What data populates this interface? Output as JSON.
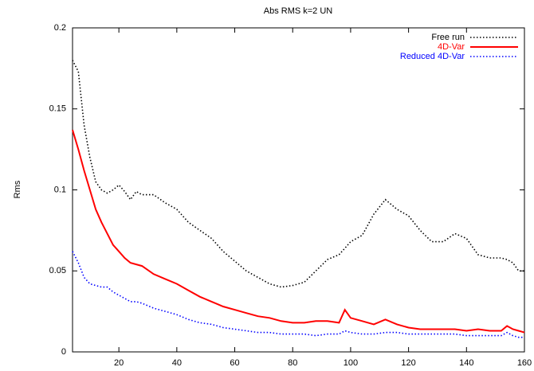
{
  "chart_data": {
    "type": "line",
    "title": "Abs RMS k=2 UN",
    "y_label": "Rms",
    "x": [
      4,
      6,
      8,
      10,
      12,
      14,
      16,
      18,
      20,
      22,
      24,
      26,
      28,
      32,
      36,
      40,
      44,
      48,
      52,
      56,
      60,
      64,
      68,
      72,
      76,
      80,
      84,
      88,
      92,
      96,
      98,
      100,
      104,
      108,
      112,
      116,
      120,
      124,
      128,
      132,
      136,
      140,
      144,
      148,
      152,
      154,
      156,
      158,
      160
    ],
    "series": [
      {
        "name": "Free run",
        "color": "#000000",
        "style": "dotted",
        "values": [
          0.18,
          0.173,
          0.14,
          0.12,
          0.105,
          0.1,
          0.098,
          0.1,
          0.103,
          0.099,
          0.094,
          0.099,
          0.097,
          0.097,
          0.092,
          0.088,
          0.08,
          0.075,
          0.07,
          0.062,
          0.056,
          0.05,
          0.046,
          0.042,
          0.04,
          0.041,
          0.043,
          0.05,
          0.057,
          0.06,
          0.064,
          0.068,
          0.072,
          0.085,
          0.094,
          0.088,
          0.084,
          0.075,
          0.068,
          0.068,
          0.073,
          0.07,
          0.06,
          0.058,
          0.058,
          0.057,
          0.055,
          0.05,
          0.05
        ]
      },
      {
        "name": "4D-Var",
        "color": "#ff0000",
        "style": "solid",
        "values": [
          0.137,
          0.125,
          0.112,
          0.1,
          0.088,
          0.08,
          0.073,
          0.066,
          0.062,
          0.058,
          0.055,
          0.054,
          0.053,
          0.048,
          0.045,
          0.042,
          0.038,
          0.034,
          0.031,
          0.028,
          0.026,
          0.024,
          0.022,
          0.021,
          0.019,
          0.018,
          0.018,
          0.019,
          0.019,
          0.018,
          0.026,
          0.021,
          0.019,
          0.017,
          0.02,
          0.017,
          0.015,
          0.014,
          0.014,
          0.014,
          0.014,
          0.013,
          0.014,
          0.013,
          0.013,
          0.016,
          0.014,
          0.013,
          0.012
        ]
      },
      {
        "name": "Reduced 4D-Var",
        "color": "#0000ff",
        "style": "dotted",
        "values": [
          0.062,
          0.055,
          0.046,
          0.042,
          0.041,
          0.04,
          0.04,
          0.037,
          0.035,
          0.033,
          0.031,
          0.031,
          0.03,
          0.027,
          0.025,
          0.023,
          0.02,
          0.018,
          0.017,
          0.015,
          0.014,
          0.013,
          0.012,
          0.012,
          0.011,
          0.011,
          0.011,
          0.01,
          0.011,
          0.011,
          0.013,
          0.012,
          0.011,
          0.011,
          0.012,
          0.012,
          0.011,
          0.011,
          0.011,
          0.011,
          0.011,
          0.01,
          0.01,
          0.01,
          0.01,
          0.012,
          0.01,
          0.009,
          0.009
        ]
      }
    ],
    "xlim": [
      4,
      160
    ],
    "ylim": [
      0,
      0.2
    ],
    "xticks": [
      20,
      40,
      60,
      80,
      100,
      120,
      140,
      160
    ],
    "yticks": [
      0,
      0.05,
      0.1,
      0.15,
      0.2
    ],
    "legend": "top-right"
  }
}
